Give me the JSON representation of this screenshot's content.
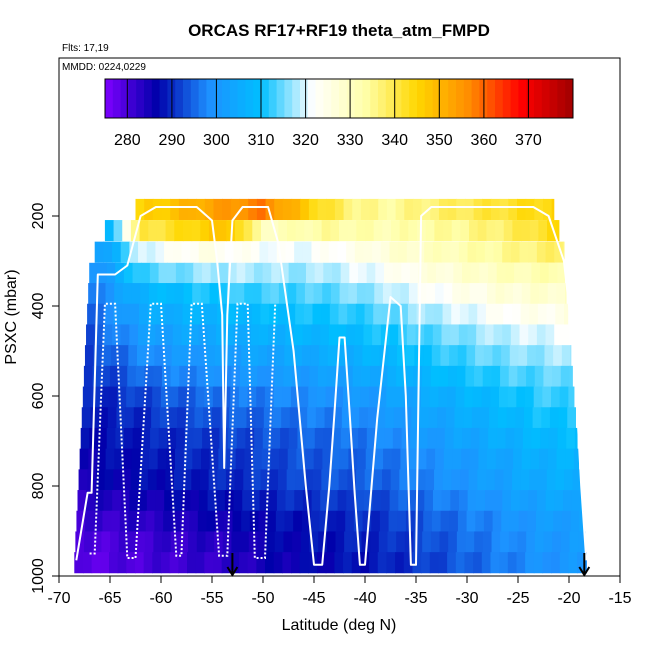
{
  "chart_data": {
    "type": "heatmap",
    "title": "ORCAS RF17+RF19 theta_atm_FMPD",
    "annotations": [
      "Flts: 17,19",
      "MMDD: 0224,0229"
    ],
    "xlabel": "Latitude (deg N)",
    "ylabel": "PSXC (mbar)",
    "xlim": [
      -70,
      -15
    ],
    "ylim": [
      1000,
      0
    ],
    "x_ticks": [
      "-70",
      "-65",
      "-60",
      "-55",
      "-50",
      "-45",
      "-40",
      "-35",
      "-30",
      "-25",
      "-20",
      "-15"
    ],
    "y_ticks": [
      "200",
      "400",
      "600",
      "800",
      "1000"
    ],
    "colorbar": {
      "ticks": [
        "280",
        "290",
        "300",
        "310",
        "320",
        "330",
        "340",
        "350",
        "360",
        "370"
      ],
      "range": [
        275,
        380
      ],
      "colors": [
        "#7f00ff",
        "#0000aa",
        "#1e90ff",
        "#00bfff",
        "#ffffff",
        "#ffffaa",
        "#ffd700",
        "#ff8c00",
        "#ff0000",
        "#a00000"
      ]
    },
    "pressure_levels": [
      185,
      232,
      280,
      327,
      372,
      418,
      464,
      510,
      556,
      602,
      648,
      694,
      740,
      786,
      832,
      878,
      924,
      970
    ],
    "lat_nodes": [
      -68,
      -65,
      -62,
      -59,
      -56,
      -53,
      -50,
      -47,
      -44,
      -41,
      -38,
      -35,
      -32,
      -29,
      -26,
      -23,
      -20,
      -18
    ],
    "theta_field": [
      [
        296,
        290,
        345,
        348,
        352,
        355,
        358,
        350,
        342,
        336,
        334,
        336,
        338,
        340,
        342,
        344,
        346,
        348
      ],
      [
        296,
        308,
        340,
        342,
        346,
        348,
        330,
        332,
        334,
        333,
        332,
        333,
        334,
        336,
        338,
        342,
        345,
        346
      ],
      [
        296,
        305,
        320,
        322,
        325,
        323,
        322,
        321,
        322,
        324,
        327,
        329,
        331,
        333,
        335,
        337,
        338,
        338
      ],
      [
        295,
        303,
        313,
        315,
        317,
        318,
        318,
        317,
        318,
        320,
        322,
        325,
        327,
        329,
        331,
        332,
        333,
        333
      ],
      [
        294,
        300,
        307,
        309,
        311,
        312,
        313,
        313,
        314,
        316,
        318,
        321,
        323,
        325,
        327,
        328,
        329,
        329
      ],
      [
        293,
        298,
        304,
        306,
        307,
        308,
        309,
        310,
        311,
        312,
        314,
        317,
        319,
        321,
        323,
        324,
        325,
        325
      ],
      [
        292,
        296,
        301,
        303,
        304,
        305,
        306,
        307,
        308,
        309,
        311,
        313,
        315,
        317,
        319,
        320,
        321,
        321
      ],
      [
        291,
        294,
        298,
        300,
        301,
        302,
        303,
        304,
        305,
        306,
        308,
        310,
        312,
        314,
        316,
        317,
        318,
        318
      ],
      [
        290,
        292,
        295,
        297,
        298,
        299,
        300,
        301,
        302,
        303,
        305,
        307,
        309,
        311,
        313,
        314,
        315,
        315
      ],
      [
        289,
        290,
        292,
        294,
        295,
        296,
        297,
        298,
        299,
        300,
        302,
        304,
        306,
        308,
        310,
        312,
        313,
        313
      ],
      [
        288,
        289,
        290,
        292,
        293,
        294,
        295,
        296,
        297,
        298,
        300,
        302,
        304,
        306,
        308,
        310,
        311,
        311
      ],
      [
        287,
        288,
        289,
        290,
        291,
        292,
        293,
        294,
        295,
        296,
        298,
        300,
        302,
        304,
        306,
        308,
        309,
        309
      ],
      [
        286,
        287,
        288,
        289,
        290,
        291,
        292,
        293,
        294,
        295,
        296,
        298,
        300,
        302,
        304,
        306,
        307,
        307
      ],
      [
        285,
        286,
        287,
        288,
        289,
        290,
        291,
        292,
        293,
        294,
        295,
        297,
        299,
        301,
        303,
        305,
        306,
        306
      ],
      [
        283,
        284,
        285,
        286,
        287,
        288,
        289,
        290,
        291,
        292,
        293,
        295,
        297,
        299,
        301,
        303,
        304,
        304
      ],
      [
        281,
        282,
        283,
        284,
        285,
        286,
        287,
        288,
        289,
        290,
        291,
        293,
        295,
        297,
        299,
        301,
        302,
        302
      ],
      [
        279,
        280,
        281,
        282,
        283,
        284,
        286,
        287,
        288,
        289,
        290,
        292,
        294,
        296,
        298,
        300,
        301,
        301
      ],
      [
        278,
        279,
        280,
        281,
        282,
        283,
        285,
        286,
        287,
        288,
        289,
        291,
        293,
        295,
        297,
        299,
        300,
        300
      ]
    ],
    "flight_track_solid": [
      [
        -68.3,
        965
      ],
      [
        -67.2,
        815
      ],
      [
        -66.8,
        815
      ],
      [
        -66.2,
        330
      ],
      [
        -64.5,
        330
      ],
      [
        -63.3,
        310
      ],
      [
        -62,
        200
      ],
      [
        -60.5,
        180
      ],
      [
        -56.5,
        180
      ],
      [
        -55,
        210
      ],
      [
        -54.5,
        300
      ],
      [
        -54,
        420
      ],
      [
        -53.8,
        760
      ],
      [
        -53.5,
        420
      ],
      [
        -53,
        210
      ],
      [
        -52,
        180
      ],
      [
        -49.5,
        180
      ],
      [
        -48.5,
        260
      ],
      [
        -47,
        500
      ],
      [
        -45.8,
        800
      ],
      [
        -45,
        975
      ],
      [
        -44.2,
        975
      ],
      [
        -43.5,
        800
      ],
      [
        -43,
        640
      ],
      [
        -42.5,
        470
      ],
      [
        -42,
        470
      ],
      [
        -41.5,
        640
      ],
      [
        -41,
        820
      ],
      [
        -40.5,
        975
      ],
      [
        -40,
        975
      ],
      [
        -38.8,
        650
      ],
      [
        -37.5,
        380
      ],
      [
        -36.5,
        400
      ],
      [
        -36,
        600
      ],
      [
        -35.5,
        975
      ],
      [
        -35,
        975
      ],
      [
        -34.5,
        200
      ],
      [
        -33.5,
        180
      ],
      [
        -23.5,
        180
      ],
      [
        -22,
        200
      ],
      [
        -20.5,
        300
      ],
      [
        -19.5,
        500
      ],
      [
        -18.8,
        800
      ],
      [
        -18.3,
        965
      ]
    ],
    "flight_track_dotted": [
      [
        -67,
        950
      ],
      [
        -66.5,
        950
      ],
      [
        -65.5,
        395
      ],
      [
        -64.5,
        395
      ],
      [
        -63.3,
        960
      ],
      [
        -62.5,
        960
      ],
      [
        -61,
        395
      ],
      [
        -60,
        395
      ],
      [
        -58.5,
        955
      ],
      [
        -58,
        955
      ],
      [
        -57,
        395
      ],
      [
        -56,
        395
      ],
      [
        -54.3,
        955
      ],
      [
        -53.5,
        955
      ],
      [
        -52.5,
        395
      ],
      [
        -51.5,
        395
      ],
      [
        -50.8,
        960
      ],
      [
        -49.8,
        960
      ],
      [
        -48.8,
        395
      ]
    ],
    "markers": [
      -53,
      -18.5
    ]
  }
}
